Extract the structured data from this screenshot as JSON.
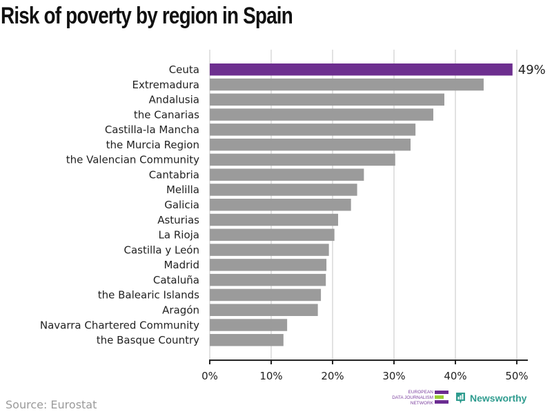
{
  "title": "Risk of poverty by region in Spain",
  "source": "Source: Eurostat",
  "logos": {
    "ejn": {
      "lines": [
        "EUROPEAN",
        "DATA JOURNALISM",
        "NETWORK"
      ],
      "colors": [
        "#6b2c91",
        "#9acd32",
        "#6b2c91"
      ]
    },
    "newsworthy": {
      "label": "Newsworthy",
      "color": "#2f9c8f"
    }
  },
  "colors": {
    "highlight": "#6d2f8f",
    "bar": "#9b9b9b",
    "grid": "#e2e2e2",
    "axis": "#222222"
  },
  "chart_data": {
    "type": "bar",
    "orientation": "horizontal",
    "title": "Risk of poverty by region in Spain",
    "xlabel": "",
    "ylabel": "",
    "xlim": [
      0,
      52
    ],
    "xticks": [
      0,
      10,
      20,
      30,
      40,
      50
    ],
    "xtick_labels": [
      "0%",
      "10%",
      "20%",
      "30%",
      "40%",
      "50%"
    ],
    "grid": true,
    "categories": [
      "Ceuta",
      "Extremadura",
      "Andalusia",
      "the Canarias",
      "Castilla-la Mancha",
      "the Murcia Region",
      "the Valencian Community",
      "Cantabria",
      "Melilla",
      "Galicia",
      "Asturias",
      "La Rioja",
      "Castilla y León",
      "Madrid",
      "Cataluña",
      "the Balearic Islands",
      "Aragón",
      "Navarra Chartered Community",
      "the Basque Country"
    ],
    "values": [
      49.3,
      44.6,
      38.2,
      36.4,
      33.5,
      32.7,
      30.2,
      25.1,
      24.0,
      23.0,
      20.9,
      20.3,
      19.4,
      19.0,
      18.9,
      18.1,
      17.6,
      12.6,
      12.0
    ],
    "highlight": "Ceuta",
    "annotations": [
      {
        "category": "Ceuta",
        "text": "49%"
      }
    ],
    "source": "Source: Eurostat"
  }
}
